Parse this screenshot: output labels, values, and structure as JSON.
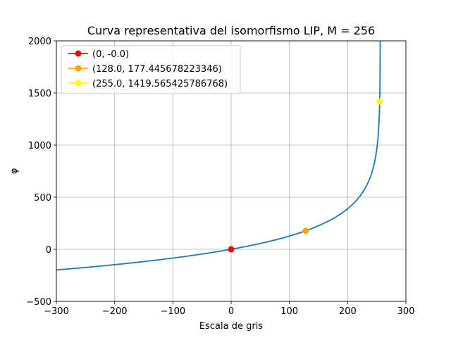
{
  "chart_data": {
    "type": "line",
    "title": "Curva representativa del isomorfismo LIP, M = 256",
    "xlabel": "Escala de gris",
    "ylabel": "φ",
    "xlim": [
      -300,
      300
    ],
    "ylim": [
      -500,
      2000
    ],
    "xticks": [
      -300,
      -200,
      -100,
      0,
      100,
      200,
      300
    ],
    "xtick_labels": [
      "−300",
      "−200",
      "−100",
      "0",
      "100",
      "200",
      "300"
    ],
    "yticks": [
      -500,
      0,
      500,
      1000,
      1500,
      2000
    ],
    "ytick_labels": [
      "−500",
      "0",
      "500",
      "1000",
      "1500",
      "2000"
    ],
    "grid": true,
    "legend_position": "top-left",
    "curve": {
      "color": "#1f77b4",
      "M": 256,
      "x": [
        -300,
        -250,
        -200,
        -150,
        -100,
        -50,
        0,
        50,
        100,
        128,
        150,
        180,
        200,
        220,
        235,
        245,
        250,
        253,
        254.5,
        255.5
      ],
      "y": [
        -198.3,
        -171.9,
        -143.1,
        -110.9,
        -75.3,
        -37.3,
        0,
        47.3,
        126.3,
        177.4,
        224.5,
        312.0,
        390.2,
        497.4,
        629.2,
        780.2,
        968.9,
        1145.4,
        1305.5,
        2000
      ]
    },
    "points": [
      {
        "label": "(0, -0.0)",
        "x": 0,
        "y": 0,
        "color": "#ff0000"
      },
      {
        "label": "(128.0, 177.445678223346)",
        "x": 128.0,
        "y": 177.445678223346,
        "color": "#ffa500"
      },
      {
        "label": "(255.0, 1419.565425786768)",
        "x": 255.0,
        "y": 1419.565425786768,
        "color": "#ffff00"
      }
    ]
  }
}
